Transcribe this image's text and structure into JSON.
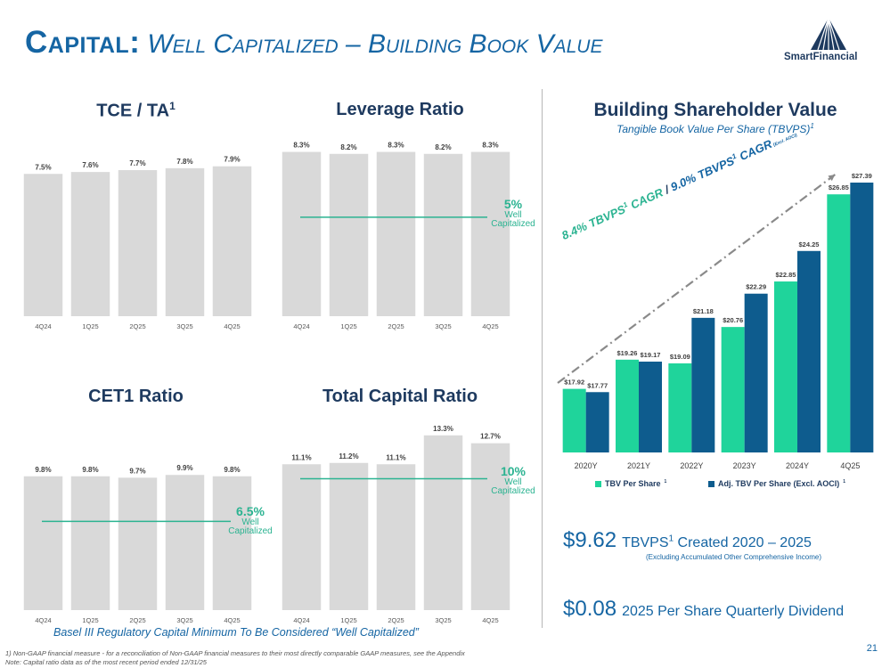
{
  "header": {
    "title_main": "Capital:",
    "title_sub": "Well Capitalized – Building Book Value",
    "logo_text": "SmartFinancial"
  },
  "chart_data": [
    {
      "id": "tce_ta",
      "type": "bar",
      "title": "TCE / TA",
      "title_sup": "1",
      "categories": [
        "4Q24",
        "1Q25",
        "2Q25",
        "3Q25",
        "4Q25"
      ],
      "values": [
        7.5,
        7.6,
        7.7,
        7.8,
        7.9
      ],
      "labels": [
        "7.5%",
        "7.6%",
        "7.7%",
        "7.8%",
        "7.9%"
      ],
      "ylim": [
        0,
        10
      ],
      "color": "#d9d9d9"
    },
    {
      "id": "leverage",
      "type": "bar",
      "title": "Leverage Ratio",
      "categories": [
        "4Q24",
        "1Q25",
        "2Q25",
        "3Q25",
        "4Q25"
      ],
      "values": [
        8.3,
        8.2,
        8.3,
        8.2,
        8.3
      ],
      "labels": [
        "8.3%",
        "8.2%",
        "8.3%",
        "8.2%",
        "8.3%"
      ],
      "ylim": [
        0,
        9
      ],
      "threshold": 5,
      "threshold_label": "5%",
      "threshold_text": [
        "Well",
        "Capitalized"
      ],
      "color": "#d9d9d9"
    },
    {
      "id": "cet1",
      "type": "bar",
      "title": "CET1 Ratio",
      "categories": [
        "4Q24",
        "1Q25",
        "2Q25",
        "3Q25",
        "4Q25"
      ],
      "values": [
        9.8,
        9.8,
        9.7,
        9.9,
        9.8
      ],
      "labels": [
        "9.8%",
        "9.8%",
        "9.7%",
        "9.9%",
        "9.8%"
      ],
      "ylim": [
        0,
        13.7
      ],
      "threshold": 6.5,
      "threshold_label": "6.5%",
      "threshold_text": [
        "Well",
        "Capitalized"
      ],
      "color": "#d9d9d9"
    },
    {
      "id": "total_capital",
      "type": "bar",
      "title": "Total Capital Ratio",
      "categories": [
        "4Q24",
        "1Q25",
        "2Q25",
        "3Q25",
        "4Q25"
      ],
      "values": [
        11.1,
        11.2,
        11.1,
        13.3,
        12.7
      ],
      "labels": [
        "11.1%",
        "11.2%",
        "11.1%",
        "13.3%",
        "12.7%"
      ],
      "ylim": [
        0,
        14.1
      ],
      "threshold": 10,
      "threshold_label": "10%",
      "threshold_text": [
        "Well",
        "Capitalized"
      ],
      "color": "#d9d9d9"
    },
    {
      "id": "tbvps",
      "type": "bar",
      "title": "Building Shareholder Value",
      "subtitle": "Tangible Book Value Per Share (TBVPS)",
      "categories": [
        "2020Y",
        "2021Y",
        "2022Y",
        "2023Y",
        "2024Y",
        "4Q25"
      ],
      "series": [
        {
          "name": "TBV Per Share",
          "color": "#1fd49b",
          "values": [
            17.92,
            19.26,
            19.09,
            20.76,
            22.85,
            26.85
          ],
          "labels": [
            "$17.92",
            "$19.26",
            "$19.09",
            "$20.76",
            "$22.85",
            "$26.85"
          ]
        },
        {
          "name": "Adj. TBV Per Share (Excl. AOCI)",
          "color": "#0e5c8e",
          "values": [
            17.77,
            19.17,
            21.18,
            22.29,
            24.25,
            27.39
          ],
          "labels": [
            "$17.77",
            "$19.17",
            "$21.18",
            "$22.29",
            "$24.25",
            "$27.39"
          ]
        }
      ],
      "ylim": [
        15,
        27.39
      ],
      "annotation": {
        "part1": "8.4% TBVPS",
        "part1_sup": "1",
        "part1_tail": " CAGR",
        "sep": " / ",
        "part2": "9.0% TBVPS",
        "part2_sup": "1",
        "part2_tail": " CAGR",
        "part2_note": " (Excl. AOCI)"
      }
    }
  ],
  "legend": {
    "item1": "TBV Per Share",
    "item1_sup": "1",
    "item2": "Adj. TBV Per Share (Excl. AOCI)",
    "item2_sup": "1"
  },
  "stats": {
    "stat1_value": "$9.62",
    "stat1_text_a": "TBVPS",
    "stat1_sup": "1",
    "stat1_text_b": " Created 2020 – 2025",
    "stat1_note": "(Excluding Accumulated Other Comprehensive Income)",
    "stat2_value": "$0.08",
    "stat2_text": "2025 Per Share Quarterly Dividend"
  },
  "footer": {
    "basel_note": "Basel III Regulatory Capital Minimum To Be Considered “Well Capitalized”",
    "footnote1": "1) Non-GAAP financial measure - for a reconciliation of Non-GAAP financial measures to their most directly comparable GAAP measures, see the Appendix",
    "footnote2": "Note: Capital ratio data as of the most recent period ended 12/31/25",
    "page_number": "21"
  },
  "colors": {
    "navy": "#1e3a5f",
    "blue": "#1565a3",
    "green": "#2bb391",
    "bar_gray": "#d9d9d9"
  }
}
